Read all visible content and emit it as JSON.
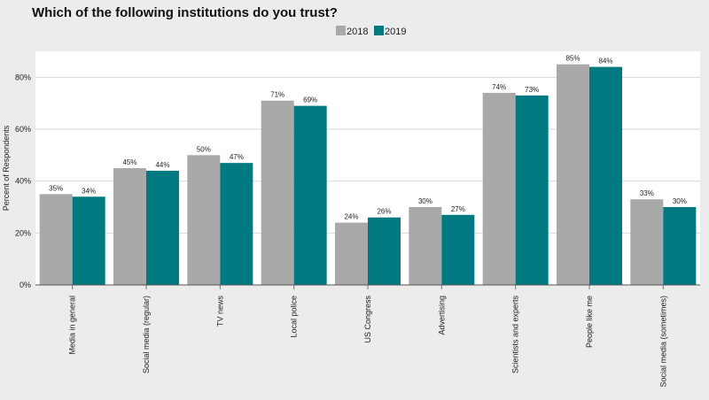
{
  "chart_data": {
    "type": "bar",
    "title": "Which of the following institutions do you trust?",
    "xlabel": "",
    "ylabel": "Percent of Respondents",
    "ylim": [
      0,
      90
    ],
    "yticks": [
      0,
      20,
      40,
      60,
      80
    ],
    "ytick_labels": [
      "0%",
      "20%",
      "40%",
      "60%",
      "80%"
    ],
    "grid": "horizontal",
    "legend_position": "top-center",
    "categories": [
      "Media in general",
      "Social media (regular)",
      "TV news",
      "Local police",
      "US Congress",
      "Advertising",
      "Scientists and experts",
      "People like me",
      "Social media (sometimes)"
    ],
    "series": [
      {
        "name": "2018",
        "color": "#a9a9a9",
        "values": [
          35,
          45,
          50,
          71,
          24,
          30,
          74,
          85,
          33
        ],
        "labels": [
          "35%",
          "45%",
          "50%",
          "71%",
          "24%",
          "30%",
          "74%",
          "85%",
          "33%"
        ]
      },
      {
        "name": "2019",
        "color": "#007a80",
        "values": [
          34,
          44,
          47,
          69,
          26,
          27,
          73,
          84,
          30
        ],
        "labels": [
          "34%",
          "44%",
          "47%",
          "69%",
          "26%",
          "27%",
          "73%",
          "84%",
          "30%"
        ]
      }
    ]
  }
}
